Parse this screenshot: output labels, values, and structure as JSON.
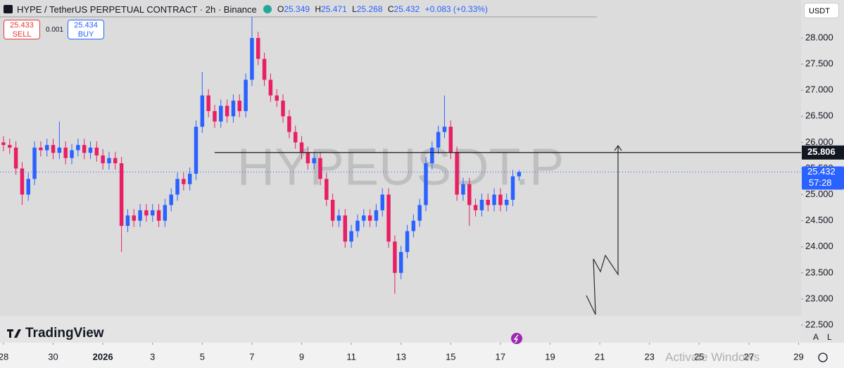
{
  "chart_data": {
    "type": "candlestick",
    "title": "HYPE / TetherUS PERPETUAL CONTRACT · 2h · Binance",
    "watermark": "HYPEUSDT.P",
    "ohlc_header": [
      {
        "label": "O",
        "value": "25.349"
      },
      {
        "label": "H",
        "value": "25.471"
      },
      {
        "label": "L",
        "value": "25.268"
      },
      {
        "label": "C",
        "value": "25.432"
      }
    ],
    "change": "+0.083 (+0.33%)",
    "sell_price": "25.433",
    "sell": "SELL",
    "spread": "0.001",
    "buy_price": "25.434",
    "buy": "BUY",
    "currency": "USDT",
    "brand": "TradingView",
    "axis_buttons": [
      "A",
      "L"
    ],
    "overlay_text": "Activate Windows",
    "horizontal_line": 25.806,
    "last_price": 25.432,
    "countdown": "57:28",
    "up_color": "#2962ff",
    "down_color": "#e91e63",
    "grid": false,
    "xlim": [
      -0.14,
      32.1
    ],
    "ylim": [
      22.163,
      28.728
    ],
    "xticks": [
      {
        "value": 0,
        "label": "28"
      },
      {
        "value": 2,
        "label": "30"
      },
      {
        "value": 4,
        "label": "2026"
      },
      {
        "value": 6,
        "label": "3"
      },
      {
        "value": 8,
        "label": "5"
      },
      {
        "value": 10,
        "label": "7"
      },
      {
        "value": 12,
        "label": "9"
      },
      {
        "value": 14,
        "label": "11"
      },
      {
        "value": 16,
        "label": "13"
      },
      {
        "value": 18,
        "label": "15"
      },
      {
        "value": 20,
        "label": "17"
      },
      {
        "value": 22,
        "label": "19"
      },
      {
        "value": 24,
        "label": "21"
      },
      {
        "value": 26,
        "label": "23"
      },
      {
        "value": 28,
        "label": "25"
      },
      {
        "value": 30,
        "label": "27"
      },
      {
        "value": 32,
        "label": "29"
      }
    ],
    "yticks": [
      {
        "value": 22.5,
        "label": "22.500"
      },
      {
        "value": 23,
        "label": "23.000"
      },
      {
        "value": 23.5,
        "label": "23.500"
      },
      {
        "value": 24,
        "label": "24.000"
      },
      {
        "value": 24.5,
        "label": "24.500"
      },
      {
        "value": 25,
        "label": "25.000"
      },
      {
        "value": 25.5,
        "label": "25.500"
      },
      {
        "value": 26,
        "label": "26.000"
      },
      {
        "value": 26.5,
        "label": "26.500"
      },
      {
        "value": 27,
        "label": "27.000"
      },
      {
        "value": 27.5,
        "label": "27.500"
      },
      {
        "value": 28,
        "label": "28.000"
      }
    ],
    "x": [
      0,
      0.25,
      0.5,
      0.75,
      1,
      1.25,
      1.5,
      1.75,
      2,
      2.25,
      2.5,
      2.75,
      3,
      3.25,
      3.5,
      3.75,
      4,
      4.25,
      4.5,
      4.75,
      5,
      5.25,
      5.5,
      5.75,
      6,
      6.25,
      6.5,
      6.75,
      7,
      7.25,
      7.5,
      7.75,
      8,
      8.25,
      8.5,
      8.75,
      9,
      9.25,
      9.5,
      9.75,
      10,
      10.25,
      10.5,
      10.75,
      11,
      11.25,
      11.5,
      11.75,
      12,
      12.25,
      12.5,
      12.75,
      13,
      13.25,
      13.5,
      13.75,
      14,
      14.25,
      14.5,
      14.75,
      15,
      15.25,
      15.5,
      15.75,
      16,
      16.25,
      16.5,
      16.75,
      17,
      17.25,
      17.5,
      17.75,
      18,
      18.25,
      18.5,
      18.75,
      19,
      19.25,
      19.5,
      19.75,
      20,
      20.25,
      20.5,
      20.75
    ],
    "open": [
      26.0,
      25.95,
      25.9,
      25.5,
      25.0,
      25.3,
      25.9,
      25.85,
      25.95,
      25.8,
      25.9,
      25.7,
      25.85,
      25.95,
      25.8,
      25.9,
      25.75,
      25.6,
      25.7,
      25.6,
      24.4,
      24.6,
      24.5,
      24.7,
      24.6,
      24.7,
      24.5,
      24.8,
      25.0,
      25.3,
      25.2,
      25.4,
      26.3,
      26.9,
      26.6,
      26.4,
      26.7,
      26.5,
      26.8,
      26.6,
      27.2,
      28.0,
      27.6,
      27.2,
      26.9,
      26.8,
      26.5,
      26.2,
      26.0,
      25.8,
      25.6,
      25.7,
      25.3,
      24.9,
      24.5,
      24.6,
      24.1,
      24.3,
      24.5,
      24.6,
      24.5,
      24.7,
      25.0,
      24.1,
      23.5,
      23.9,
      24.3,
      24.5,
      24.8,
      25.6,
      25.9,
      26.2,
      26.3,
      25.8,
      25.0,
      25.2,
      24.8,
      24.7,
      24.9,
      24.8,
      25.0,
      24.8,
      24.9,
      25.349
    ],
    "high": [
      26.12,
      26.07,
      26.02,
      25.62,
      25.42,
      26.02,
      26.02,
      26.07,
      26.07,
      26.4,
      26.02,
      25.97,
      26.07,
      26.07,
      26.02,
      26.02,
      25.87,
      25.82,
      25.82,
      25.72,
      24.72,
      24.72,
      24.82,
      24.82,
      24.82,
      24.82,
      24.92,
      25.12,
      25.42,
      25.42,
      25.52,
      26.42,
      27.35,
      27.02,
      26.72,
      26.82,
      26.82,
      26.92,
      26.92,
      27.32,
      28.4,
      28.12,
      27.72,
      27.32,
      27.02,
      26.92,
      26.62,
      26.32,
      26.12,
      25.92,
      25.82,
      25.82,
      25.42,
      25.02,
      24.72,
      24.72,
      24.42,
      24.62,
      24.72,
      24.72,
      24.82,
      25.12,
      25.12,
      24.22,
      24.02,
      24.42,
      24.62,
      24.92,
      25.72,
      26.02,
      26.32,
      26.9,
      26.42,
      25.92,
      25.32,
      25.32,
      24.92,
      25.02,
      25.02,
      25.12,
      25.12,
      25.02,
      25.47,
      25.471
    ],
    "low": [
      25.83,
      25.78,
      25.38,
      24.8,
      24.88,
      25.18,
      25.73,
      25.73,
      25.68,
      25.68,
      25.58,
      25.58,
      25.73,
      25.68,
      25.68,
      25.63,
      25.48,
      25.48,
      25.48,
      23.9,
      24.28,
      24.38,
      24.38,
      24.48,
      24.48,
      24.38,
      24.38,
      24.68,
      24.88,
      25.08,
      25.08,
      25.28,
      26.18,
      26.48,
      26.28,
      26.28,
      26.38,
      26.38,
      26.48,
      26.48,
      27.08,
      27.48,
      27.08,
      26.78,
      26.68,
      26.38,
      26.08,
      25.88,
      25.68,
      25.48,
      25.48,
      25.18,
      24.78,
      24.38,
      24.38,
      23.98,
      23.98,
      24.18,
      24.38,
      24.38,
      24.38,
      24.58,
      23.98,
      23.1,
      23.38,
      23.78,
      24.18,
      24.38,
      24.68,
      25.48,
      25.78,
      26.08,
      25.68,
      24.88,
      24.88,
      24.4,
      24.58,
      24.58,
      24.68,
      24.68,
      24.68,
      24.68,
      24.78,
      25.268
    ],
    "close": [
      25.95,
      25.9,
      25.5,
      25.0,
      25.3,
      25.9,
      25.85,
      25.95,
      25.8,
      25.9,
      25.7,
      25.85,
      25.95,
      25.8,
      25.9,
      25.75,
      25.6,
      25.7,
      25.6,
      24.4,
      24.6,
      24.5,
      24.7,
      24.6,
      24.7,
      24.5,
      24.8,
      25.0,
      25.3,
      25.2,
      25.4,
      26.3,
      26.9,
      26.6,
      26.4,
      26.7,
      26.5,
      26.8,
      26.6,
      27.2,
      28.0,
      27.6,
      27.2,
      26.9,
      26.8,
      26.5,
      26.2,
      26.0,
      25.8,
      25.6,
      25.7,
      25.3,
      24.9,
      24.5,
      24.6,
      24.1,
      24.3,
      24.5,
      24.6,
      24.5,
      24.7,
      25.0,
      24.1,
      23.5,
      23.9,
      24.3,
      24.5,
      24.8,
      25.6,
      25.9,
      26.2,
      26.3,
      25.8,
      25.0,
      25.2,
      24.8,
      24.7,
      24.9,
      24.8,
      25.0,
      24.8,
      24.9,
      25.35,
      25.432
    ]
  }
}
